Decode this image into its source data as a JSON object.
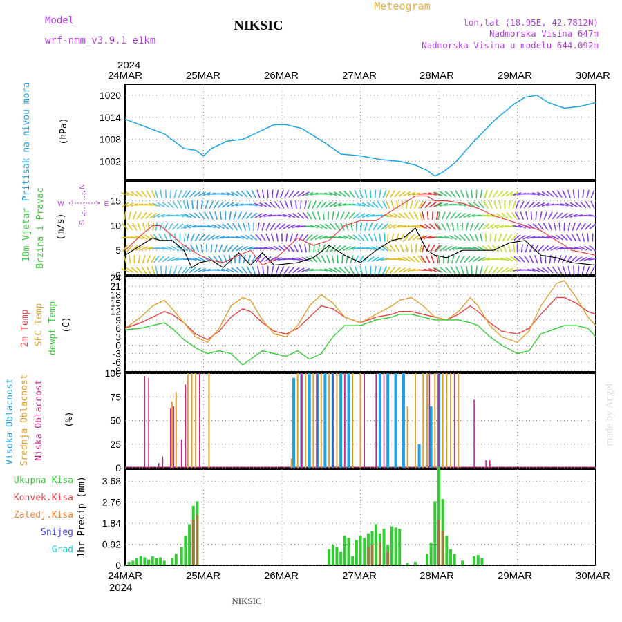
{
  "header": {
    "model_label": "Model",
    "model_value": "wrf-nmm_v3.9.1  e1km",
    "station": "NIKSIC",
    "product": "Meteogram",
    "lonlat": "lon,lat (18.95E, 42.7812N)",
    "altitude": "Nadmorska Visina 647m",
    "model_altitude": "Nadmorska Visina u modelu 644.092m",
    "year_top": "2024",
    "year_bottom": "2024",
    "footer_station": "NIKSIC",
    "credit": "made by Angel"
  },
  "colors": {
    "pressure": "#1aa3e8",
    "wind_label": "#33cc33",
    "wind_dir": "#b040e0",
    "temp2m": "#e84040",
    "sfc": "#e0a030",
    "dewpt": "#33cc33",
    "high_cloud": "#1aa3e8",
    "mid_cloud": "#e0a030",
    "low_cloud": "#cc2288",
    "total_precip": "#33cc33",
    "conv": "#e84040",
    "frozen": "#f08030",
    "snow": "#4444dd",
    "grad": "#22cccc",
    "model_text": "#b040e0",
    "product_text": "#e8b040"
  },
  "x_axis": {
    "ticks": [
      "24MAR",
      "25MAR",
      "26MAR",
      "27MAR",
      "28MAR",
      "29MAR",
      "30MAR"
    ]
  },
  "panels": {
    "pressure": {
      "label": "Pritisak na nivou mora",
      "unit": "(hPa)",
      "ticks": [
        "1002",
        "1008",
        "1014",
        "1020"
      ]
    },
    "wind": {
      "label1": "10m Vjetar",
      "label2": "Brzina i Pravac",
      "unit": "(m/s)",
      "ticks": [
        "0",
        "5",
        "10",
        "15"
      ],
      "compass": {
        "n": "N",
        "s": "S",
        "e": "E",
        "w": "W"
      }
    },
    "temp": {
      "label1": "2m Temp",
      "label2": "SFC Temp",
      "label3": "dewpt Temp",
      "unit": "(C)",
      "ticks": [
        "-9",
        "-6",
        "-3",
        "0",
        "3",
        "6",
        "9",
        "12",
        "15",
        "18",
        "21",
        "24"
      ]
    },
    "cloud": {
      "label1": "Visoka Oblacnost",
      "label2": "Srednja Oblacnost",
      "label3": "Niska Oblacnost",
      "unit": "(%)",
      "ticks": [
        "0",
        "25",
        "50",
        "75",
        "100"
      ]
    },
    "precip": {
      "legend": [
        "Ukupna Kisa",
        "Konvek.Kisa",
        "Zaledj.Kisa",
        "Snijeg",
        "Grad"
      ],
      "unit": "1hr Precip (mm)",
      "ticks": [
        "0",
        "0.92",
        "1.84",
        "2.76",
        "3.68"
      ]
    }
  },
  "chart_data": [
    {
      "type": "line",
      "title": "Pritisak na nivou mora",
      "ylabel": "(hPa)",
      "ylim": [
        997,
        1023
      ],
      "x_days": [
        0,
        0.25,
        0.5,
        0.75,
        0.9,
        1.0,
        1.1,
        1.3,
        1.5,
        1.7,
        1.9,
        2.05,
        2.25,
        2.4,
        2.55,
        2.75,
        3.0,
        3.25,
        3.5,
        3.7,
        3.85,
        3.95,
        4.05,
        4.2,
        4.45,
        4.7,
        4.95,
        5.1,
        5.25,
        5.4,
        5.6,
        5.8,
        6.0
      ],
      "series": [
        {
          "values": [
            1013.5,
            1011.5,
            1009.5,
            1005.5,
            1005,
            1003.5,
            1005.5,
            1007.5,
            1008,
            1010,
            1012,
            1012,
            1011,
            1009,
            1007,
            1004,
            1003.5,
            1002.5,
            1002,
            1001,
            999.5,
            998,
            999,
            1001.5,
            1007.5,
            1013,
            1017.5,
            1019.5,
            1020,
            1018,
            1016.5,
            1017,
            1018
          ]
        }
      ]
    },
    {
      "type": "line",
      "title": "10m Vjetar Brzina i Pravac",
      "ylabel": "(m/s)",
      "ylim": [
        0,
        19
      ],
      "x_days": [
        0,
        0.2,
        0.35,
        0.45,
        0.6,
        0.75,
        0.85,
        0.95,
        1.1,
        1.25,
        1.45,
        1.6,
        1.75,
        1.9,
        2.2,
        2.4,
        2.6,
        2.8,
        3.0,
        3.2,
        3.4,
        3.55,
        3.7,
        3.85,
        3.95,
        4.1,
        4.3,
        4.5,
        4.7,
        4.9,
        5.1,
        5.3,
        5.5,
        5.7,
        6.0
      ],
      "series": [
        {
          "values": [
            4,
            6,
            7.5,
            7,
            7,
            5,
            1.5,
            2.5,
            3,
            1.5,
            4.5,
            2,
            4.5,
            2,
            2.5,
            3.5,
            6,
            4,
            2.5,
            5,
            7,
            7.5,
            9.5,
            5,
            4,
            3.5,
            5,
            5,
            5,
            6.5,
            7,
            4,
            3.5,
            2.5,
            2
          ]
        },
        {
          "values": [
            5,
            8,
            10,
            10,
            8,
            6,
            5,
            4,
            3,
            2.5,
            4,
            5,
            2,
            3,
            7.5,
            6,
            7,
            10,
            11,
            11,
            13,
            14.5,
            16,
            16,
            15,
            15,
            14.5,
            13.5,
            12,
            11,
            10,
            9,
            7,
            5,
            4
          ]
        }
      ]
    },
    {
      "type": "line",
      "title": "2m Temp / SFC Temp / dewpt Temp",
      "ylabel": "(C)",
      "ylim": [
        -9.5,
        24.5
      ],
      "x_days": [
        0,
        0.2,
        0.35,
        0.5,
        0.6,
        0.75,
        0.9,
        1.05,
        1.2,
        1.35,
        1.5,
        1.6,
        1.75,
        1.9,
        2.05,
        2.2,
        2.35,
        2.5,
        2.65,
        2.8,
        3.0,
        3.2,
        3.4,
        3.5,
        3.65,
        3.8,
        3.95,
        4.1,
        4.25,
        4.4,
        4.5,
        4.65,
        4.8,
        5.0,
        5.15,
        5.3,
        5.5,
        5.6,
        5.75,
        5.9,
        6.0
      ],
      "series": [
        {
          "name": "2m Temp",
          "values": [
            6,
            8,
            10,
            12,
            11,
            8,
            4,
            2,
            5,
            10,
            13,
            12,
            8,
            5,
            4,
            6,
            10,
            14,
            13,
            10,
            8,
            10,
            11,
            12,
            12,
            11,
            10,
            9,
            11,
            14,
            12,
            8,
            5,
            4,
            6,
            11,
            17,
            17,
            15,
            12,
            11
          ]
        },
        {
          "name": "SFC Temp",
          "values": [
            6,
            10,
            14,
            16,
            13,
            8,
            3,
            1,
            6,
            14,
            17,
            16,
            9,
            4,
            3,
            7,
            14,
            18,
            15,
            10,
            8,
            11,
            14,
            16,
            17,
            14,
            10,
            9,
            12,
            17,
            14,
            7,
            3,
            1,
            5,
            14,
            22,
            23,
            17,
            10,
            7
          ]
        },
        {
          "name": "dewpt Temp",
          "values": [
            5.5,
            6,
            7,
            8,
            6,
            2,
            -1,
            -3,
            -2,
            -3,
            -7,
            -5,
            -2,
            -3,
            -4,
            -2,
            -5,
            -3,
            3,
            7,
            7,
            9,
            10,
            11,
            11,
            10,
            9,
            9,
            9,
            8,
            7,
            3,
            0,
            -3,
            -2,
            4,
            6,
            7,
            7,
            6,
            3
          ]
        }
      ]
    },
    {
      "type": "bar",
      "title": "Oblacnost",
      "ylabel": "(%)",
      "ylim": [
        0,
        100
      ],
      "series": [
        {
          "name": "Visoka Oblacnost",
          "x_days": [
            2.15,
            2.25,
            2.35,
            2.45,
            2.55,
            2.65,
            2.75,
            2.85,
            3.25,
            3.35,
            3.45,
            3.55,
            3.75,
            3.9,
            4.0
          ],
          "values": [
            95,
            100,
            100,
            100,
            100,
            100,
            100,
            100,
            100,
            100,
            100,
            100,
            25,
            65,
            100
          ]
        },
        {
          "name": "Srednja Oblacnost",
          "x_days": [
            0.6,
            0.65,
            0.8,
            0.85,
            0.9,
            1.07,
            2.12,
            2.2,
            2.3,
            2.4,
            2.5,
            2.6,
            2.7,
            2.8,
            2.9,
            3.0,
            3.6,
            3.7,
            3.8,
            3.85,
            3.95,
            4.05,
            4.1,
            4.15,
            4.25
          ],
          "values": [
            70,
            80,
            100,
            100,
            100,
            100,
            10,
            100,
            100,
            100,
            100,
            100,
            100,
            100,
            100,
            100,
            65,
            100,
            100,
            100,
            100,
            100,
            100,
            100,
            100
          ]
        },
        {
          "name": "Niska Oblacnost",
          "x_days": [
            0.25,
            0.3,
            0.43,
            0.48,
            0.58,
            0.62,
            0.72,
            0.77,
            0.95,
            2.25,
            2.45,
            2.65,
            2.8,
            3.05,
            3.2,
            3.3,
            3.88,
            4.0,
            4.2,
            4.45,
            4.6,
            4.65
          ],
          "values": [
            97,
            95,
            5,
            12,
            63,
            65,
            30,
            88,
            100,
            100,
            100,
            100,
            100,
            100,
            100,
            100,
            100,
            100,
            100,
            72,
            8,
            8
          ]
        }
      ]
    },
    {
      "type": "bar",
      "title": "1hr Precip",
      "ylabel": "1hr Precip (mm)",
      "ylim": [
        0,
        4.2
      ],
      "series": [
        {
          "name": "Ukupna Kisa",
          "x_days": [
            0.05,
            0.1,
            0.15,
            0.2,
            0.25,
            0.3,
            0.35,
            0.4,
            0.45,
            0.5,
            0.6,
            0.65,
            0.72,
            0.77,
            0.82,
            0.87,
            0.92,
            2.6,
            2.65,
            2.7,
            2.75,
            2.8,
            2.85,
            2.9,
            2.95,
            3.0,
            3.05,
            3.1,
            3.15,
            3.2,
            3.25,
            3.3,
            3.35,
            3.4,
            3.45,
            3.5,
            3.6,
            3.7,
            3.85,
            3.9,
            3.95,
            4.0,
            4.05,
            4.1,
            4.15,
            4.2,
            4.3,
            4.45,
            4.5,
            4.55
          ],
          "values": [
            0.15,
            0.2,
            0.3,
            0.4,
            0.35,
            0.25,
            0.4,
            0.3,
            0.35,
            0.2,
            0.3,
            0.5,
            0.8,
            1.3,
            1.8,
            2.6,
            2.8,
            0.7,
            0.9,
            0.8,
            0.6,
            1.3,
            1.2,
            0.4,
            1.1,
            1.3,
            1.2,
            1.4,
            1.5,
            1.8,
            1.4,
            1.6,
            0.9,
            1.7,
            1.65,
            1.6,
            0.1,
            0.15,
            0.5,
            1.0,
            2.8,
            4.3,
            2.9,
            1.3,
            0.7,
            0.5,
            0.2,
            0.4,
            0.45,
            0.3
          ]
        },
        {
          "name": "Konvek.Kisa",
          "x_days": [
            0.87,
            0.92,
            3.1,
            3.15,
            3.25,
            3.35,
            4.0,
            4.05
          ],
          "values": [
            2.0,
            2.2,
            0.8,
            0.9,
            1.0,
            0.6,
            2.0,
            1.5
          ]
        }
      ]
    }
  ]
}
